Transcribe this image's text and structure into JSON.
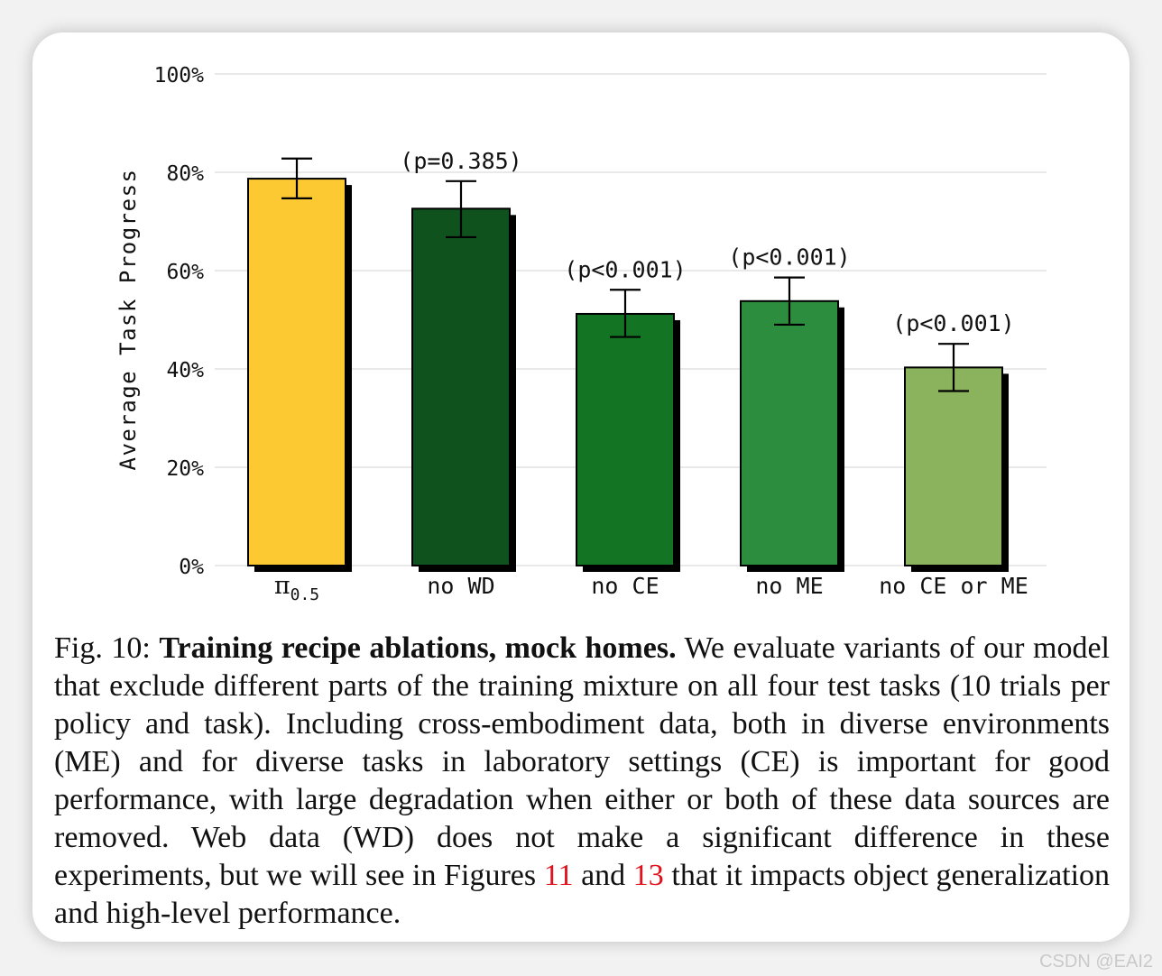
{
  "chart_data": {
    "type": "bar",
    "ylabel": "Average Task Progress",
    "ylim": [
      0,
      100
    ],
    "yticks": [
      0,
      20,
      40,
      60,
      80,
      100
    ],
    "ytick_labels": [
      "0%",
      "20%",
      "40%",
      "60%",
      "80%",
      "100%"
    ],
    "grid": true,
    "categories": [
      "π",
      "no WD",
      "no CE",
      "no ME",
      "no CE or ME"
    ],
    "first_category_subscript": "0.5",
    "values": [
      78.7,
      72.6,
      51.2,
      53.8,
      40.3
    ],
    "error_low": [
      74.7,
      66.8,
      46.5,
      49.0,
      35.5
    ],
    "error_high": [
      82.8,
      78.2,
      56.1,
      58.6,
      45.1
    ],
    "annotations": [
      "",
      "(p=0.385)",
      "(p<0.001)",
      "(p<0.001)",
      "(p<0.001)"
    ],
    "colors": [
      "#fdc932",
      "#0f521e",
      "#137524",
      "#2d8d3e",
      "#8bb35e"
    ]
  },
  "caption": {
    "label": "Fig. 10:",
    "title": "Training recipe ablations, mock homes.",
    "text1": "We evaluate variants of our model that exclude different parts of the training mixture on all four test tasks (10 trials per policy and task). Including cross-embodiment data, both in diverse environments (ME) and for diverse tasks in laboratory settings (CE) is important for good performance, with large degradation when either or both of these data sources are removed. Web data (WD) does not make a significant difference in these experiments, but we will see in Figures",
    "ref1": "11",
    "and": "and",
    "ref2": "13",
    "text2": "that it impacts object generalization and high-level performance."
  },
  "watermark": "CSDN @EAI2"
}
